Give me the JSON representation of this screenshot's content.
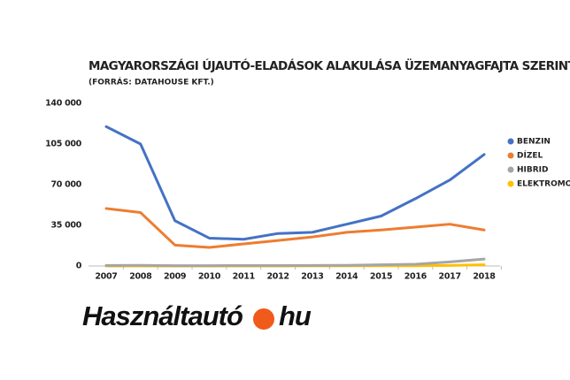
{
  "chart_data": {
    "type": "line",
    "title": "MAGYARORSZÁGI ÚJAUTÓ-ELADÁSOK ALAKULÁSA ÜZEMANYAGFAJTA SZERINT",
    "subtitle": "(FORRÁS: DATAHOUSE KFT.)",
    "categories": [
      "2007",
      "2008",
      "2009",
      "2010",
      "2011",
      "2012",
      "2013",
      "2014",
      "2015",
      "2016",
      "2017",
      "2018"
    ],
    "series": [
      {
        "name": "BENZIN",
        "color": "#4472c4",
        "values": [
          120000,
          105000,
          39000,
          24000,
          23000,
          28000,
          29000,
          36000,
          43000,
          58000,
          74000,
          96000
        ]
      },
      {
        "name": "DÍZEL",
        "color": "#ed7d31",
        "values": [
          49500,
          46000,
          18000,
          16000,
          19000,
          22000,
          25000,
          29000,
          31000,
          33500,
          36000,
          31000
        ]
      },
      {
        "name": "HIBRID",
        "color": "#a5a5a5",
        "values": [
          500,
          600,
          300,
          300,
          400,
          400,
          500,
          600,
          1000,
          1500,
          3500,
          6000
        ]
      },
      {
        "name": "ELEKTROMOS",
        "color": "#ffc000",
        "values": [
          0,
          0,
          0,
          0,
          0,
          0,
          50,
          100,
          150,
          200,
          500,
          1000
        ]
      }
    ],
    "ylim": [
      0,
      140000
    ],
    "yticks": [
      0,
      {
        "value": 35000,
        "label": "35 000"
      },
      {
        "value": 70000,
        "label": "70 000"
      },
      {
        "value": 105000,
        "label": "105 000"
      },
      {
        "value": 140000,
        "label": "140 000"
      }
    ],
    "grid": false,
    "legend": "right"
  },
  "logo": {
    "text": "Használtautó",
    "suffix": "hu"
  }
}
